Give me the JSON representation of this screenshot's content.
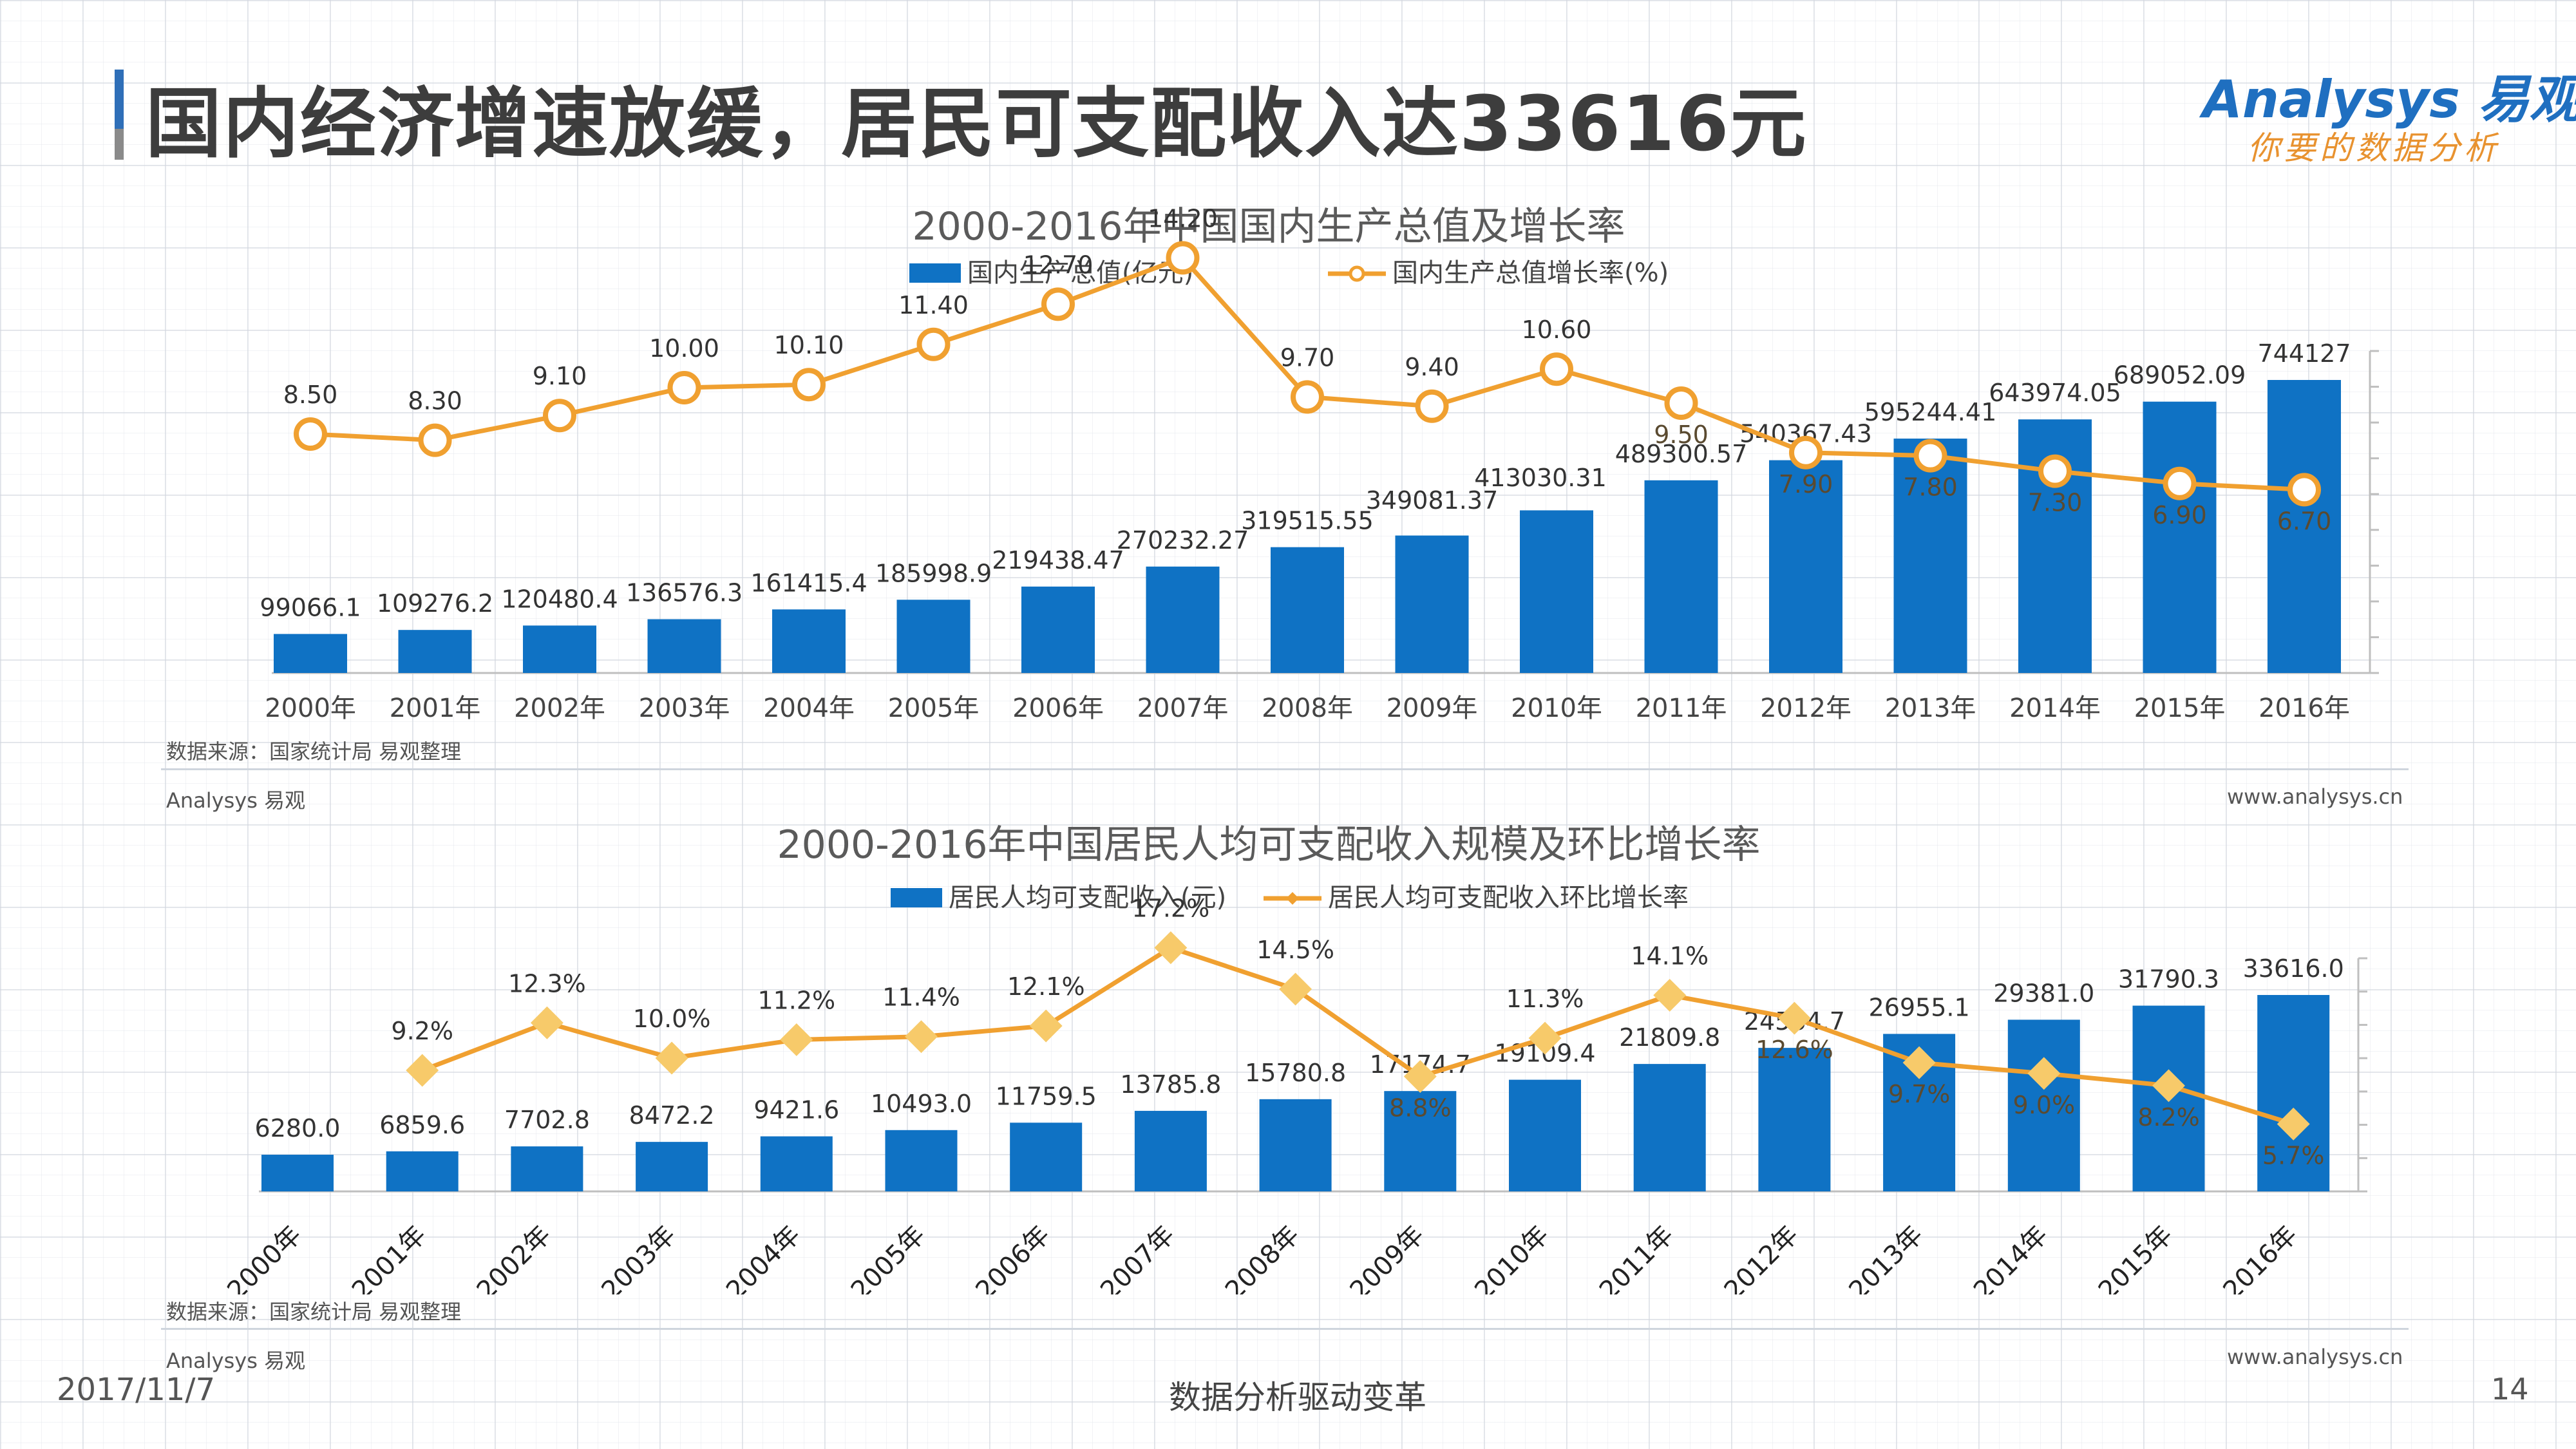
{
  "header": {
    "title": "国内经济增速放缓，居民可支配收入达33616元",
    "logo": "Analysys 易观",
    "logo_tagline": "你要的数据分析"
  },
  "colors": {
    "bar": "#0f72c4",
    "line": "#f0a030",
    "title_bar": "#2f6fb8"
  },
  "chart1": {
    "source": "数据来源：国家统计局  易观整理",
    "brand": "Analysys 易观",
    "site": "www.analysys.cn"
  },
  "chart2": {
    "source": "数据来源：国家统计局  易观整理",
    "brand": "Analysys 易观",
    "site": "www.analysys.cn"
  },
  "footer": {
    "date": "2017/11/7",
    "tagline": "数据分析驱动变革",
    "page": "14"
  },
  "chart_data": [
    {
      "type": "bar+line",
      "title": "2000-2016年中国国内生产总值及增长率",
      "categories": [
        "2000年",
        "2001年",
        "2002年",
        "2003年",
        "2004年",
        "2005年",
        "2006年",
        "2007年",
        "2008年",
        "2009年",
        "2010年",
        "2011年",
        "2012年",
        "2013年",
        "2014年",
        "2015年",
        "2016年"
      ],
      "series": [
        {
          "name": "国内生产总值(亿元)",
          "type": "bar",
          "values": [
            99066.1,
            109276.2,
            120480.4,
            136576.3,
            161415.4,
            185998.9,
            219438.47,
            270232.27,
            319515.55,
            349081.37,
            413030.31,
            489300.57,
            540367.43,
            595244.41,
            643974.05,
            689052.09,
            744127
          ],
          "labels": [
            "99066.1",
            "109276.2",
            "120480.4",
            "136576.3",
            "161415.4",
            "185998.9",
            "219438.47",
            "270232.27",
            "319515.55",
            "349081.37",
            "413030.31",
            "489300.57",
            "540367.43",
            "595244.41",
            "643974.05",
            "689052.09",
            "744127"
          ]
        },
        {
          "name": "国内生产总值增长率(%)",
          "type": "line",
          "values": [
            8.5,
            8.3,
            9.1,
            10.0,
            10.1,
            11.4,
            12.7,
            14.2,
            9.7,
            9.4,
            10.6,
            9.5,
            7.9,
            7.8,
            7.3,
            6.9,
            6.7
          ],
          "labels": [
            "8.50",
            "8.30",
            "9.10",
            "10.00",
            "10.10",
            "11.40",
            "12.70",
            "14.20",
            "9.70",
            "9.40",
            "10.60",
            "9.50",
            "7.90",
            "7.80",
            "7.30",
            "6.90",
            "6.70"
          ]
        }
      ],
      "legend": "top"
    },
    {
      "type": "bar+line",
      "title": "2000-2016年中国居民人均可支配收入规模及环比增长率",
      "categories": [
        "2000年",
        "2001年",
        "2002年",
        "2003年",
        "2004年",
        "2005年",
        "2006年",
        "2007年",
        "2008年",
        "2009年",
        "2010年",
        "2011年",
        "2012年",
        "2013年",
        "2014年",
        "2015年",
        "2016年"
      ],
      "series": [
        {
          "name": "居民人均可支配收入(元)",
          "type": "bar",
          "values": [
            6280.0,
            6859.6,
            7702.8,
            8472.2,
            9421.6,
            10493.0,
            11759.5,
            13785.8,
            15780.8,
            17174.7,
            19109.4,
            21809.8,
            24564.7,
            26955.1,
            29381.0,
            31790.3,
            33616.0
          ],
          "labels": [
            "6280.0",
            "6859.6",
            "7702.8",
            "8472.2",
            "9421.6",
            "10493.0",
            "11759.5",
            "13785.8",
            "15780.8",
            "17174.7",
            "19109.4",
            "21809.8",
            "24564.7",
            "26955.1",
            "29381.0",
            "31790.3",
            "33616.0"
          ]
        },
        {
          "name": "居民人均可支配收入环比增长率",
          "type": "line",
          "values": [
            null,
            9.2,
            12.3,
            10.0,
            11.2,
            11.4,
            12.1,
            17.2,
            14.5,
            8.8,
            11.3,
            14.1,
            12.6,
            9.7,
            9.0,
            8.2,
            5.7
          ],
          "labels": [
            "",
            "9.2%",
            "12.3%",
            "10.0%",
            "11.2%",
            "11.4%",
            "12.1%",
            "17.2%",
            "14.5%",
            "8.8%",
            "11.3%",
            "14.1%",
            "12.6%",
            "9.7%",
            "9.0%",
            "8.2%",
            "5.7%"
          ]
        }
      ],
      "legend": "top"
    }
  ]
}
